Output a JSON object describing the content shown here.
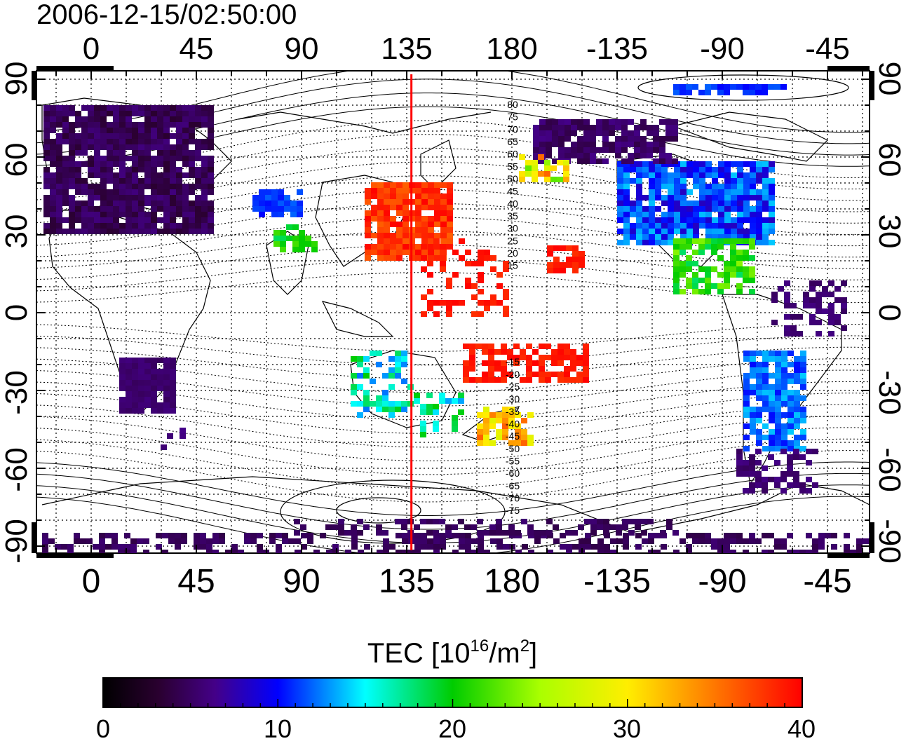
{
  "timestamp": "2006-12-15/02:50:00",
  "map": {
    "lon_ticks_top": [
      "0",
      "45",
      "90",
      "135",
      "180",
      "-135",
      "-90",
      "-45"
    ],
    "lon_ticks_bottom": [
      "0",
      "45",
      "90",
      "135",
      "180",
      "-135",
      "-90",
      "-45"
    ],
    "lat_ticks_left": [
      "90",
      "60",
      "30",
      "0",
      "-30",
      "-60",
      "-90"
    ],
    "lat_ticks_right": [
      "90",
      "60",
      "30",
      "0",
      "-30",
      "-60",
      "-90"
    ],
    "magnetic_lat_labels": [
      "80",
      "75",
      "70",
      "65",
      "60",
      "55",
      "50",
      "45",
      "40",
      "35",
      "30",
      "25",
      "20",
      "15",
      "-15",
      "-20",
      "-25",
      "-30",
      "-35",
      "-40",
      "-45",
      "-50",
      "-55",
      "-60",
      "-65",
      "-70",
      "-75"
    ],
    "marker_longitude": 137
  },
  "colorbar": {
    "label_main": "TEC  [10",
    "label_sup1": "16",
    "label_mid": "/m",
    "label_sup2": "2",
    "label_end": "]",
    "ticks": [
      "0",
      "10",
      "20",
      "30",
      "40"
    ],
    "range": [
      0,
      40
    ]
  },
  "colors": {
    "marker_line": "#ff0000",
    "grid": "#000000"
  }
}
